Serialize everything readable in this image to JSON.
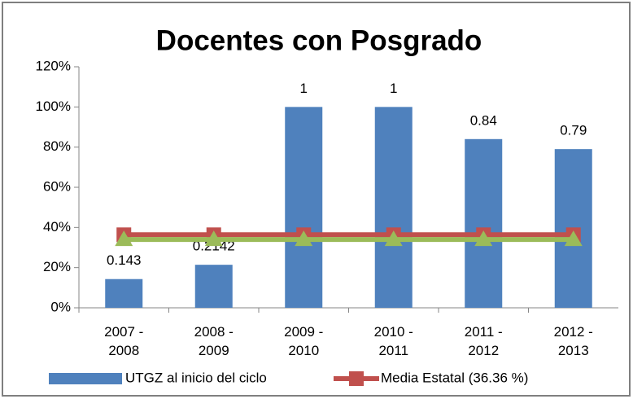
{
  "chart_data": {
    "type": "bar",
    "title": "Docentes con Posgrado",
    "categories": [
      "2007 - 2008",
      "2008 - 2009",
      "2009 - 2010",
      "2010 - 2011",
      "2011 - 2012",
      "2012 - 2013"
    ],
    "series": [
      {
        "name": "UTGZ al inicio del ciclo",
        "type": "bar",
        "color": "#4f81bd",
        "values": [
          14.3,
          21.42,
          100,
          100,
          84,
          79
        ],
        "value_labels": [
          "0.143",
          "0.2142",
          "1",
          "1",
          "0.84",
          "0.79"
        ]
      },
      {
        "name": "Media Estatal (36.36 %)",
        "type": "line",
        "marker": "square",
        "color": "#c0504d",
        "values": [
          36.36,
          36.36,
          36.36,
          36.36,
          36.36,
          36.36
        ]
      },
      {
        "type": "line",
        "marker": "triangle",
        "color": "#9bbb59",
        "values": [
          34,
          34,
          34,
          34,
          34,
          34
        ]
      }
    ],
    "ylim": [
      0,
      120
    ],
    "yticks": [
      {
        "value": 0,
        "label": "0%"
      },
      {
        "value": 20,
        "label": "20%"
      },
      {
        "value": 40,
        "label": "40%"
      },
      {
        "value": 60,
        "label": "60%"
      },
      {
        "value": 80,
        "label": "80%"
      },
      {
        "value": 100,
        "label": "100%"
      },
      {
        "value": 120,
        "label": "120%"
      }
    ],
    "grid": false,
    "legend": "bottom"
  }
}
